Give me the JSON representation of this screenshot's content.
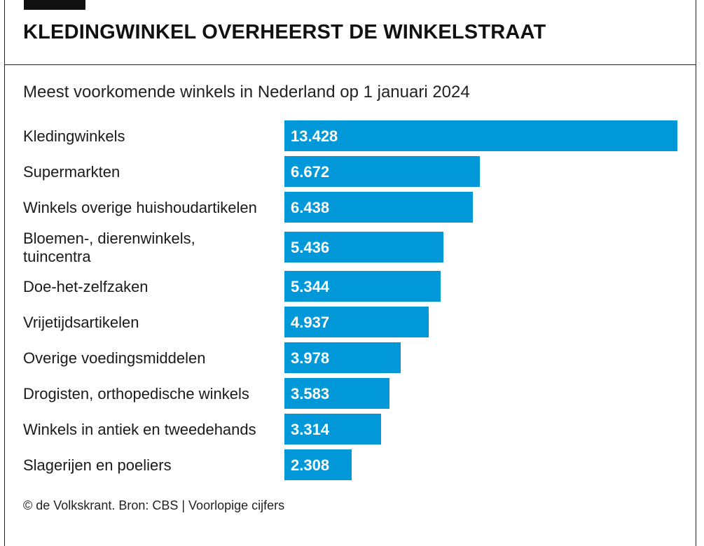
{
  "header": {
    "title": "KLEDINGWINKEL OVERHEERST DE WINKELSTRAAT",
    "subtitle": "Meest voorkomende winkels in Nederland op 1 januari 2024"
  },
  "footer": {
    "source": "© de Volkskrant. Bron: CBS | Voorlopige cijfers"
  },
  "colors": {
    "bar": "#0098d8",
    "bar_label": "#ffffff",
    "text": "#1a1a1a"
  },
  "chart_data": {
    "type": "bar",
    "orientation": "horizontal",
    "title": "KLEDINGWINKEL OVERHEERST DE WINKELSTRAAT",
    "subtitle": "Meest voorkomende winkels in Nederland op 1 januari 2024",
    "categories": [
      [
        "Kledingwinkels"
      ],
      [
        "Supermarkten"
      ],
      [
        "Winkels overige huishoudartikelen"
      ],
      [
        "Bloemen-, dierenwinkels,",
        "tuincentra"
      ],
      [
        "Doe-het-zelfzaken"
      ],
      [
        "Vrijetijdsartikelen"
      ],
      [
        "Overige voedingsmiddelen"
      ],
      [
        "Drogisten, orthopedische winkels"
      ],
      [
        "Winkels in antiek en tweedehands"
      ],
      [
        "Slagerijen en poeliers"
      ]
    ],
    "values": [
      13428,
      6672,
      6438,
      5436,
      5344,
      4937,
      3978,
      3583,
      3314,
      2308
    ],
    "value_labels": [
      "13.428",
      "6.672",
      "6.438",
      "5.436",
      "5.344",
      "4.937",
      "3.978",
      "3.583",
      "3.314",
      "2.308"
    ],
    "xlim": [
      0,
      13428
    ],
    "grid": false,
    "legend": "none"
  }
}
